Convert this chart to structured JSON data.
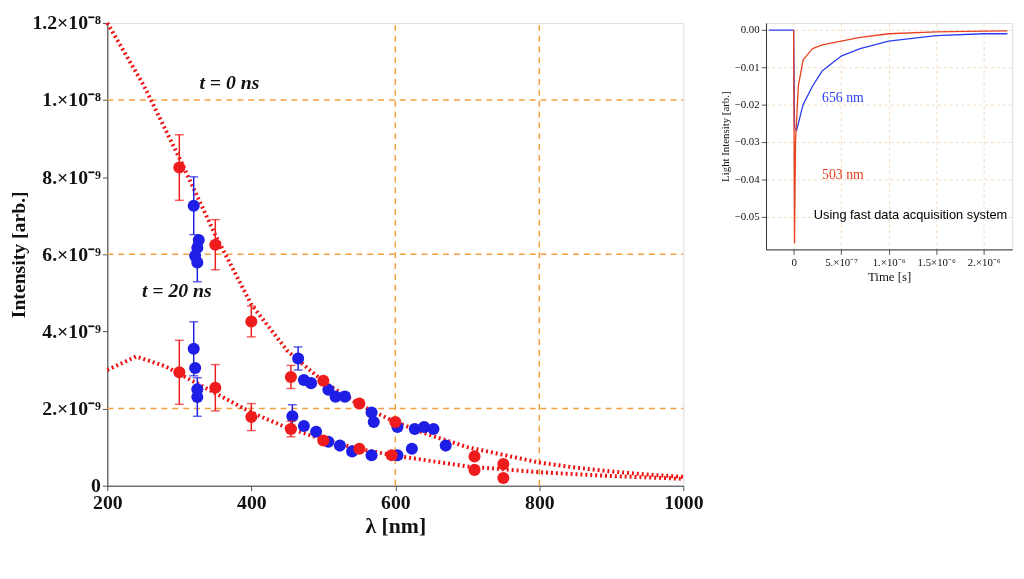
{
  "chart_data": [
    {
      "type": "scatter",
      "xlabel": "λ [nm]",
      "ylabel": "Intensity [arb.]",
      "marker": "circle",
      "grid": false,
      "xlim": [
        200,
        1000
      ],
      "ylim": [
        0,
        1.2e-08
      ],
      "xticks": [
        200,
        400,
        600,
        800,
        {
          "value": 1000,
          "label": "1000"
        }
      ],
      "yticks": [
        {
          "value": 0,
          "label": "0"
        },
        {
          "value": 2e-09,
          "label": "2.×10⁻⁹"
        },
        {
          "value": 4e-09,
          "label": "4.×10⁻⁹"
        },
        {
          "value": 6e-09,
          "label": "6.×10⁻⁹"
        },
        {
          "value": 8e-09,
          "label": "8.×10⁻⁹"
        },
        {
          "value": 1e-08,
          "label": "1.×10⁻⁸"
        },
        {
          "value": 1.2e-08,
          "label": "1.2×10⁻⁸"
        }
      ],
      "ref_lines": [
        {
          "axis": "y",
          "value": 2e-09,
          "color": "#f4a040",
          "line_style": "dashed"
        },
        {
          "axis": "y",
          "value": 6e-09,
          "color": "#f4a040",
          "line_style": "dashed"
        },
        {
          "axis": "y",
          "value": 1e-08,
          "color": "#f4a040",
          "line_style": "dashed"
        },
        {
          "axis": "x",
          "value": 600,
          "color": "#f4a040",
          "line_style": "dashed"
        },
        {
          "axis": "x",
          "value": 800,
          "color": "#f4a040",
          "line_style": "dashed"
        }
      ],
      "series": [
        {
          "type": "line",
          "marker": "none",
          "line_style": "dotted",
          "color": "#ee1111",
          "x": [
            200,
            250,
            300,
            350,
            400,
            450,
            500,
            550,
            600,
            650,
            700,
            750,
            800,
            850,
            900,
            950,
            1000
          ],
          "values": [
            1.2e-08,
            1.04e-08,
            8.5e-09,
            6.5e-09,
            4.7e-09,
            3.5e-09,
            2.7e-09,
            2.1e-09,
            1.65e-09,
            1.3e-09,
            1e-09,
            8e-10,
            6e-10,
            4.7e-10,
            3.7e-10,
            2.9e-10,
            2.3e-10
          ]
        },
        {
          "type": "line",
          "marker": "none",
          "line_style": "dotted",
          "color": "#ee1111",
          "x": [
            200,
            240,
            280,
            300,
            350,
            400,
            450,
            500,
            550,
            600,
            700,
            800,
            900,
            1000
          ],
          "values": [
            3e-09,
            3.35e-09,
            3.1e-09,
            2.9e-09,
            2.4e-09,
            1.9e-09,
            1.5e-09,
            1.2e-09,
            9.5e-10,
            7.8e-10,
            5e-10,
            3.5e-10,
            2.5e-10,
            1.8e-10
          ]
        },
        {
          "color": "#1e1ee6",
          "x": [
            320,
            327,
            325,
            322,
            325,
            465,
            473,
            483,
            507,
            517,
            530,
            567,
            570,
            603,
            627,
            640,
            653,
            670,
            623
          ],
          "values": [
            7.26e-09,
            6.37e-09,
            6.17e-09,
            5.96e-09,
            5.79e-09,
            3.3e-09,
            2.74e-09,
            2.66e-09,
            2.49e-09,
            2.31e-09,
            2.31e-09,
            1.9e-09,
            1.65e-09,
            1.52e-09,
            1.47e-09,
            1.52e-09,
            1.47e-09,
            1.04e-09,
            9.6e-10
          ],
          "errors": [
            7.5e-10,
            null,
            null,
            null,
            5e-10,
            3e-10,
            null,
            null,
            null,
            null,
            null,
            null,
            null,
            null,
            null,
            null,
            null,
            null,
            null
          ]
        },
        {
          "color": "#1e1ee6",
          "x": [
            320,
            322,
            325,
            325,
            457,
            473,
            490,
            507,
            523,
            540,
            567,
            603
          ],
          "values": [
            3.55e-09,
            3.05e-09,
            2.5e-09,
            2.3e-09,
            1.8e-09,
            1.55e-09,
            1.4e-09,
            1.14e-09,
            1.04e-09,
            8.9e-10,
            7.9e-10,
            7.9e-10
          ],
          "errors": [
            7e-10,
            null,
            null,
            5e-10,
            3e-10,
            null,
            null,
            null,
            null,
            null,
            null,
            null
          ]
        },
        {
          "color": "#ee1c1c",
          "x": [
            300,
            350,
            400,
            455,
            500,
            550,
            600,
            710,
            750
          ],
          "values": [
            8.25e-09,
            6.25e-09,
            4.26e-09,
            2.82e-09,
            2.72e-09,
            2.13e-09,
            1.65e-09,
            7.6e-10,
            5.6e-10
          ],
          "errors": [
            8.5e-10,
            6.5e-10,
            4e-10,
            3e-10,
            null,
            null,
            null,
            null,
            null
          ]
        },
        {
          "color": "#ee1c1c",
          "x": [
            300,
            350,
            400,
            455,
            500,
            550,
            595,
            710,
            750
          ],
          "values": [
            2.94e-09,
            2.54e-09,
            1.78e-09,
            1.47e-09,
            1.17e-09,
            9.6e-10,
            7.9e-10,
            4.1e-10,
            2e-10
          ],
          "errors": [
            8.3e-10,
            6e-10,
            3.5e-10,
            2e-10,
            null,
            null,
            null,
            null,
            null
          ]
        }
      ],
      "annotations": [
        "t = 0 ns",
        "t = 20 ns"
      ]
    },
    {
      "type": "line",
      "xlabel": "Time [s]",
      "ylabel": "Light Intensity [arb.]",
      "grid": true,
      "xlim": [
        -2.9e-07,
        2.3e-06
      ],
      "ylim": [
        -0.0588,
        0.0019
      ],
      "xticks": [
        {
          "value": 0,
          "label": "0"
        },
        {
          "value": 5e-07,
          "label": "5.×10⁻⁷"
        },
        {
          "value": 1e-06,
          "label": "1.×10⁻⁶"
        },
        {
          "value": 1.5e-06,
          "label": "1.5×10⁻⁶"
        },
        {
          "value": 2e-06,
          "label": "2.×10⁻⁶"
        }
      ],
      "yticks": [
        {
          "value": 0,
          "label": "0.00"
        },
        {
          "value": -0.01,
          "label": "−0.01"
        },
        {
          "value": -0.02,
          "label": "−0.02"
        },
        {
          "value": -0.03,
          "label": "−0.03"
        },
        {
          "value": -0.04,
          "label": "−0.04"
        },
        {
          "value": -0.05,
          "label": "−0.05"
        }
      ],
      "series": [
        {
          "name": "656 nm",
          "color": "#2a3cf0",
          "x": [
            -2.6e-07,
            0,
            1e-08,
            3e-08,
            1e-07,
            2e-07,
            3e-07,
            4e-07,
            5e-07,
            7e-07,
            1e-06,
            1.5e-06,
            2e-06,
            2.25e-06
          ],
          "values": [
            0,
            0,
            -0.026,
            -0.027,
            -0.02,
            -0.015,
            -0.011,
            -0.009,
            -0.007,
            -0.005,
            -0.003,
            -0.0015,
            -0.001,
            -0.001
          ]
        },
        {
          "name": "503 nm",
          "color": "#e8401e",
          "x": [
            0,
            1e-08,
            2e-08,
            5e-08,
            1e-07,
            2e-07,
            3e-07,
            5e-07,
            7e-07,
            1e-06,
            1.5e-06,
            2e-06,
            2.25e-06
          ],
          "values": [
            0,
            -0.057,
            -0.03,
            -0.015,
            -0.008,
            -0.005,
            -0.004,
            -0.003,
            -0.002,
            -0.001,
            -0.0005,
            -0.0003,
            -0.0002
          ]
        }
      ],
      "annotations": [
        "Using fast data acquisition system"
      ]
    }
  ]
}
